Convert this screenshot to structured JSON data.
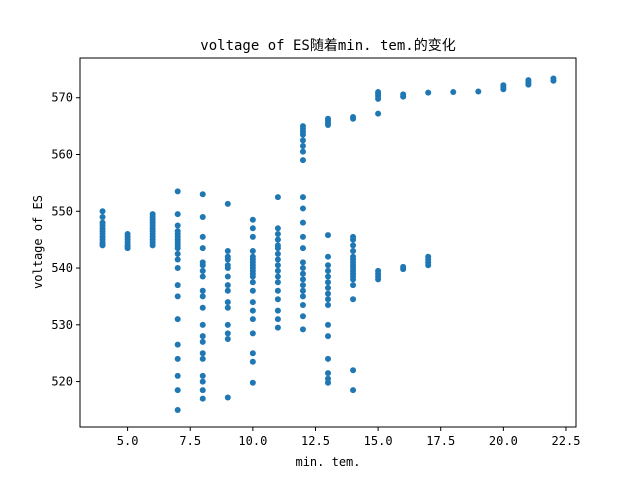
{
  "chart_data": {
    "type": "scatter",
    "title": "voltage of ES随着min. tem.的变化",
    "xlabel": "min. tem.",
    "ylabel": "voltage of ES",
    "xlim": [
      3.1,
      22.9
    ],
    "ylim": [
      512.0,
      577.0
    ],
    "xticks": [
      5.0,
      7.5,
      10.0,
      12.5,
      15.0,
      17.5,
      20.0,
      22.5
    ],
    "xtick_labels": [
      "5.0",
      "7.5",
      "10.0",
      "12.5",
      "15.0",
      "17.5",
      "20.0",
      "22.5"
    ],
    "yticks": [
      520,
      530,
      540,
      550,
      560,
      570
    ],
    "ytick_labels": [
      "520",
      "530",
      "540",
      "550",
      "560",
      "570"
    ],
    "grid": false,
    "marker_color": "#1f77b4",
    "series": [
      {
        "name": "",
        "points": [
          [
            4,
            544.0
          ],
          [
            4,
            544.5
          ],
          [
            4,
            545.0
          ],
          [
            4,
            545.5
          ],
          [
            4,
            546.0
          ],
          [
            4,
            546.5
          ],
          [
            4,
            547.0
          ],
          [
            4,
            547.5
          ],
          [
            4,
            548.0
          ],
          [
            4,
            549.0
          ],
          [
            4,
            550.0
          ],
          [
            4,
            544.2
          ],
          [
            5,
            543.5
          ],
          [
            5,
            544.0
          ],
          [
            5,
            544.5
          ],
          [
            5,
            545.0
          ],
          [
            5,
            545.5
          ],
          [
            5,
            546.0
          ],
          [
            5,
            543.8
          ],
          [
            6,
            544.0
          ],
          [
            6,
            545.0
          ],
          [
            6,
            546.0
          ],
          [
            6,
            547.0
          ],
          [
            6,
            548.0
          ],
          [
            6,
            549.0
          ],
          [
            6,
            549.5
          ],
          [
            6,
            544.5
          ],
          [
            6,
            545.5
          ],
          [
            6,
            546.5
          ],
          [
            6,
            547.5
          ],
          [
            6,
            548.5
          ],
          [
            7,
            515.0
          ],
          [
            7,
            518.5
          ],
          [
            7,
            521.0
          ],
          [
            7,
            524.0
          ],
          [
            7,
            526.5
          ],
          [
            7,
            531.0
          ],
          [
            7,
            535.0
          ],
          [
            7,
            537.0
          ],
          [
            7,
            540.0
          ],
          [
            7,
            541.5
          ],
          [
            7,
            542.5
          ],
          [
            7,
            543.5
          ],
          [
            7,
            544.0
          ],
          [
            7,
            544.5
          ],
          [
            7,
            545.0
          ],
          [
            7,
            545.5
          ],
          [
            7,
            546.0
          ],
          [
            7,
            546.5
          ],
          [
            7,
            547.5
          ],
          [
            7,
            549.5
          ],
          [
            7,
            553.5
          ],
          [
            8,
            517.0
          ],
          [
            8,
            518.5
          ],
          [
            8,
            520.0
          ],
          [
            8,
            521.0
          ],
          [
            8,
            524.0
          ],
          [
            8,
            525.0
          ],
          [
            8,
            527.0
          ],
          [
            8,
            528.0
          ],
          [
            8,
            530.0
          ],
          [
            8,
            533.0
          ],
          [
            8,
            535.0
          ],
          [
            8,
            536.0
          ],
          [
            8,
            538.5
          ],
          [
            8,
            539.5
          ],
          [
            8,
            540.5
          ],
          [
            8,
            541.0
          ],
          [
            8,
            543.5
          ],
          [
            8,
            545.5
          ],
          [
            8,
            549.0
          ],
          [
            8,
            553.0
          ],
          [
            9,
            517.2
          ],
          [
            9,
            527.5
          ],
          [
            9,
            528.5
          ],
          [
            9,
            530.0
          ],
          [
            9,
            533.0
          ],
          [
            9,
            534.0
          ],
          [
            9,
            536.0
          ],
          [
            9,
            537.0
          ],
          [
            9,
            538.5
          ],
          [
            9,
            540.0
          ],
          [
            9,
            540.5
          ],
          [
            9,
            541.5
          ],
          [
            9,
            542.0
          ],
          [
            9,
            543.0
          ],
          [
            9,
            551.3
          ],
          [
            10,
            519.8
          ],
          [
            10,
            523.5
          ],
          [
            10,
            525.0
          ],
          [
            10,
            528.5
          ],
          [
            10,
            531.0
          ],
          [
            10,
            532.5
          ],
          [
            10,
            534.0
          ],
          [
            10,
            536.0
          ],
          [
            10,
            537.5
          ],
          [
            10,
            538.5
          ],
          [
            10,
            539.0
          ],
          [
            10,
            539.5
          ],
          [
            10,
            540.0
          ],
          [
            10,
            540.5
          ],
          [
            10,
            541.0
          ],
          [
            10,
            541.5
          ],
          [
            10,
            542.0
          ],
          [
            10,
            543.0
          ],
          [
            10,
            545.5
          ],
          [
            10,
            547.0
          ],
          [
            10,
            548.5
          ],
          [
            11,
            529.5
          ],
          [
            11,
            531.0
          ],
          [
            11,
            532.5
          ],
          [
            11,
            534.5
          ],
          [
            11,
            536.0
          ],
          [
            11,
            537.5
          ],
          [
            11,
            538.5
          ],
          [
            11,
            539.5
          ],
          [
            11,
            540.5
          ],
          [
            11,
            541.5
          ],
          [
            11,
            542.5
          ],
          [
            11,
            543.5
          ],
          [
            11,
            544.0
          ],
          [
            11,
            545.0
          ],
          [
            11,
            546.0
          ],
          [
            11,
            547.0
          ],
          [
            11,
            552.5
          ],
          [
            12,
            529.2
          ],
          [
            12,
            531.5
          ],
          [
            12,
            533.5
          ],
          [
            12,
            535.0
          ],
          [
            12,
            536.0
          ],
          [
            12,
            537.0
          ],
          [
            12,
            538.0
          ],
          [
            12,
            539.0
          ],
          [
            12,
            540.0
          ],
          [
            12,
            541.0
          ],
          [
            12,
            543.5
          ],
          [
            12,
            545.5
          ],
          [
            12,
            548.0
          ],
          [
            12,
            550.5
          ],
          [
            12,
            552.5
          ],
          [
            12,
            559.0
          ],
          [
            12,
            560.5
          ],
          [
            12,
            561.5
          ],
          [
            12,
            562.5
          ],
          [
            12,
            563.5
          ],
          [
            12,
            564.0
          ],
          [
            12,
            564.5
          ],
          [
            12,
            565.0
          ],
          [
            13,
            519.8
          ],
          [
            13,
            520.5
          ],
          [
            13,
            521.5
          ],
          [
            13,
            524.0
          ],
          [
            13,
            528.0
          ],
          [
            13,
            530.0
          ],
          [
            13,
            533.5
          ],
          [
            13,
            534.5
          ],
          [
            13,
            535.5
          ],
          [
            13,
            536.5
          ],
          [
            13,
            537.5
          ],
          [
            13,
            538.5
          ],
          [
            13,
            539.5
          ],
          [
            13,
            540.5
          ],
          [
            13,
            542.0
          ],
          [
            13,
            545.8
          ],
          [
            13,
            565.2
          ],
          [
            13,
            565.6
          ],
          [
            13,
            566.0
          ],
          [
            13,
            566.3
          ],
          [
            14,
            518.5
          ],
          [
            14,
            522.0
          ],
          [
            14,
            534.5
          ],
          [
            14,
            537.0
          ],
          [
            14,
            538.0
          ],
          [
            14,
            538.5
          ],
          [
            14,
            539.0
          ],
          [
            14,
            539.5
          ],
          [
            14,
            540.0
          ],
          [
            14,
            540.5
          ],
          [
            14,
            541.0
          ],
          [
            14,
            541.5
          ],
          [
            14,
            542.0
          ],
          [
            14,
            543.0
          ],
          [
            14,
            544.0
          ],
          [
            14,
            545.0
          ],
          [
            14,
            545.5
          ],
          [
            14,
            566.3
          ],
          [
            14,
            566.6
          ],
          [
            15,
            538.0
          ],
          [
            15,
            538.5
          ],
          [
            15,
            539.0
          ],
          [
            15,
            539.5
          ],
          [
            15,
            567.2
          ],
          [
            15,
            569.8
          ],
          [
            15,
            570.3
          ],
          [
            15,
            570.7
          ],
          [
            15,
            571.0
          ],
          [
            16,
            539.8
          ],
          [
            16,
            540.2
          ],
          [
            16,
            570.2
          ],
          [
            16,
            570.6
          ],
          [
            17,
            540.5
          ],
          [
            17,
            541.0
          ],
          [
            17,
            541.5
          ],
          [
            17,
            542.0
          ],
          [
            17,
            570.9
          ],
          [
            18,
            571.0
          ],
          [
            19,
            571.1
          ],
          [
            20,
            571.5
          ],
          [
            20,
            571.8
          ],
          [
            20,
            572.2
          ],
          [
            21,
            572.3
          ],
          [
            21,
            572.7
          ],
          [
            21,
            573.1
          ],
          [
            22,
            573.0
          ],
          [
            22,
            573.4
          ]
        ]
      }
    ]
  }
}
